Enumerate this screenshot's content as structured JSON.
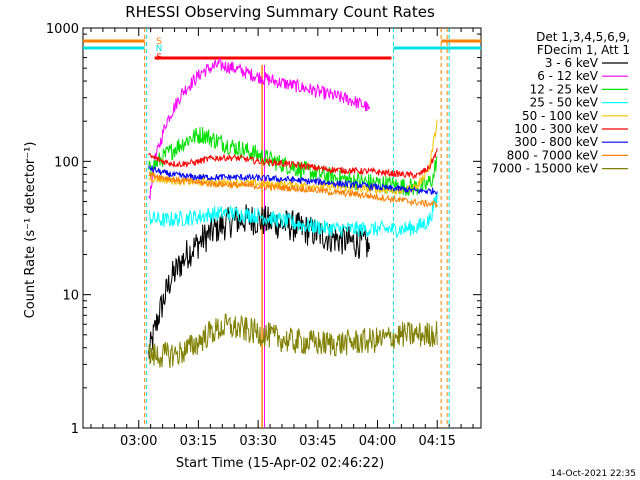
{
  "chart_data": {
    "type": "line",
    "title": "RHESSI Observing Summary Count Rates",
    "xlabel": "Start Time (15-Apr-02 02:46:22)",
    "ylabel": "Count Rate (s⁻¹ detector⁻¹)",
    "yscale": "log",
    "xlim": [
      0,
      100
    ],
    "ylim": [
      1,
      1000
    ],
    "x_ticks": [
      {
        "x": 14,
        "label": "03:00"
      },
      {
        "x": 29,
        "label": "03:15"
      },
      {
        "x": 44,
        "label": "03:30"
      },
      {
        "x": 59,
        "label": "03:45"
      },
      {
        "x": 74,
        "label": "04:00"
      },
      {
        "x": 89,
        "label": "04:15"
      }
    ],
    "y_ticks": [
      {
        "y": 1,
        "label": "1"
      },
      {
        "y": 10,
        "label": "10"
      },
      {
        "y": 100,
        "label": "100"
      },
      {
        "y": 1000,
        "label": "1000"
      }
    ],
    "legend_title": [
      "Det 1,3,4,5,6,9,",
      "FDecim 1, Att 1"
    ],
    "legend_position": "top-right",
    "flags": [
      {
        "label": "S",
        "color": "#ff8000"
      },
      {
        "label": "N",
        "color": "#00e0e0"
      },
      {
        "label": "F",
        "color": "#ff0000"
      }
    ],
    "series": [
      {
        "name": "3 - 6 keV",
        "color": "#000000",
        "noise": 0.12,
        "points": [
          [
            16.5,
            3.5
          ],
          [
            19,
            7
          ],
          [
            22,
            13
          ],
          [
            26,
            20
          ],
          [
            30,
            26
          ],
          [
            34,
            32
          ],
          [
            38,
            36
          ],
          [
            42,
            37
          ],
          [
            47,
            35
          ],
          [
            52,
            33
          ],
          [
            57,
            30
          ],
          [
            62,
            27
          ],
          [
            67,
            25
          ],
          [
            71,
            24
          ],
          [
            72,
            22
          ]
        ]
      },
      {
        "name": "6 - 12 keV",
        "color": "#ff00ff",
        "noise": 0.05,
        "points": [
          [
            16.5,
            50
          ],
          [
            18,
            100
          ],
          [
            21,
            200
          ],
          [
            25,
            330
          ],
          [
            30,
            470
          ],
          [
            34,
            530
          ],
          [
            38,
            500
          ],
          [
            43,
            440
          ],
          [
            48,
            400
          ],
          [
            53,
            370
          ],
          [
            58,
            340
          ],
          [
            63,
            310
          ],
          [
            67,
            290
          ],
          [
            71,
            260
          ],
          [
            72,
            240
          ]
        ]
      },
      {
        "name": "12 - 25 keV",
        "color": "#00e000",
        "noise": 0.07,
        "points": [
          [
            16.5,
            85
          ],
          [
            19,
            100
          ],
          [
            23,
            125
          ],
          [
            27,
            150
          ],
          [
            30,
            160
          ],
          [
            33,
            145
          ],
          [
            38,
            128
          ],
          [
            43,
            115
          ],
          [
            48,
            100
          ],
          [
            53,
            90
          ],
          [
            58,
            82
          ],
          [
            63,
            76
          ],
          [
            67,
            72
          ],
          [
            71,
            70
          ],
          [
            75,
            68
          ],
          [
            80,
            65
          ],
          [
            83,
            64
          ],
          [
            86,
            65
          ],
          [
            88,
            75
          ],
          [
            89,
            110
          ]
        ]
      },
      {
        "name": "25 - 50 keV",
        "color": "#00ffff",
        "noise": 0.06,
        "points": [
          [
            16.5,
            38
          ],
          [
            20,
            36
          ],
          [
            24,
            37
          ],
          [
            28,
            38
          ],
          [
            32,
            40
          ],
          [
            36,
            41
          ],
          [
            40,
            40
          ],
          [
            44,
            39
          ],
          [
            48,
            37
          ],
          [
            52,
            35
          ],
          [
            56,
            33
          ],
          [
            60,
            32
          ],
          [
            64,
            31
          ],
          [
            68,
            31
          ],
          [
            72,
            31
          ],
          [
            76,
            31
          ],
          [
            80,
            31
          ],
          [
            84,
            32
          ],
          [
            87,
            36
          ],
          [
            89,
            55
          ]
        ]
      },
      {
        "name": "50 - 100 keV",
        "color": "#ffc000",
        "noise": 0.03,
        "points": [
          [
            16.5,
            75
          ],
          [
            20,
            73
          ],
          [
            24,
            71
          ],
          [
            28,
            70
          ],
          [
            32,
            70
          ],
          [
            36,
            69
          ],
          [
            40,
            69
          ],
          [
            44,
            68
          ],
          [
            48,
            67
          ],
          [
            52,
            67
          ],
          [
            56,
            66
          ],
          [
            60,
            65
          ],
          [
            64,
            64
          ],
          [
            68,
            63
          ],
          [
            72,
            62
          ],
          [
            76,
            61
          ],
          [
            80,
            60
          ],
          [
            84,
            65
          ],
          [
            87,
            90
          ],
          [
            89,
            200
          ]
        ]
      },
      {
        "name": "100 - 300 keV",
        "color": "#ff0000",
        "noise": 0.025,
        "points": [
          [
            16.5,
            110
          ],
          [
            20,
            100
          ],
          [
            24,
            95
          ],
          [
            28,
            98
          ],
          [
            32,
            105
          ],
          [
            36,
            107
          ],
          [
            40,
            105
          ],
          [
            44,
            100
          ],
          [
            48,
            98
          ],
          [
            52,
            95
          ],
          [
            56,
            92
          ],
          [
            60,
            88
          ],
          [
            64,
            86
          ],
          [
            68,
            85
          ],
          [
            72,
            84
          ],
          [
            76,
            82
          ],
          [
            80,
            80
          ],
          [
            84,
            78
          ],
          [
            87,
            90
          ],
          [
            89,
            120
          ]
        ]
      },
      {
        "name": "300 - 800 keV",
        "color": "#0000ff",
        "noise": 0.025,
        "points": [
          [
            16.5,
            90
          ],
          [
            20,
            82
          ],
          [
            24,
            78
          ],
          [
            28,
            76
          ],
          [
            32,
            76
          ],
          [
            36,
            76
          ],
          [
            40,
            76
          ],
          [
            44,
            75
          ],
          [
            48,
            74
          ],
          [
            52,
            73
          ],
          [
            56,
            71
          ],
          [
            60,
            70
          ],
          [
            64,
            68
          ],
          [
            68,
            67
          ],
          [
            72,
            65
          ],
          [
            76,
            63
          ],
          [
            80,
            62
          ],
          [
            84,
            60
          ],
          [
            87,
            60
          ],
          [
            89,
            60
          ]
        ]
      },
      {
        "name": "800 - 7000 keV",
        "color": "#ff8000",
        "noise": 0.025,
        "points": [
          [
            16.5,
            80
          ],
          [
            20,
            76
          ],
          [
            24,
            72
          ],
          [
            28,
            70
          ],
          [
            32,
            68
          ],
          [
            36,
            67
          ],
          [
            40,
            66
          ],
          [
            44,
            65
          ],
          [
            48,
            64
          ],
          [
            52,
            63
          ],
          [
            56,
            62
          ],
          [
            60,
            60
          ],
          [
            64,
            58
          ],
          [
            68,
            57
          ],
          [
            72,
            55
          ],
          [
            76,
            53
          ],
          [
            80,
            51
          ],
          [
            84,
            49
          ],
          [
            87,
            48
          ],
          [
            89,
            48
          ]
        ]
      },
      {
        "name": "7000 - 15000 keV",
        "color": "#808000",
        "noise": 0.1,
        "points": [
          [
            16.5,
            3.5
          ],
          [
            20,
            3.5
          ],
          [
            24,
            3.6
          ],
          [
            28,
            4.2
          ],
          [
            32,
            5.2
          ],
          [
            36,
            5.8
          ],
          [
            40,
            5.5
          ],
          [
            44,
            5.2
          ],
          [
            48,
            4.8
          ],
          [
            52,
            4.5
          ],
          [
            56,
            4.4
          ],
          [
            60,
            4.3
          ],
          [
            64,
            4.3
          ],
          [
            68,
            4.4
          ],
          [
            72,
            4.5
          ],
          [
            75,
            4.6
          ],
          [
            80,
            5
          ],
          [
            84,
            5
          ],
          [
            87,
            5
          ],
          [
            89,
            5.2
          ]
        ]
      }
    ]
  },
  "footer": {
    "timestamp": "14-Oct-2021 22:35"
  }
}
